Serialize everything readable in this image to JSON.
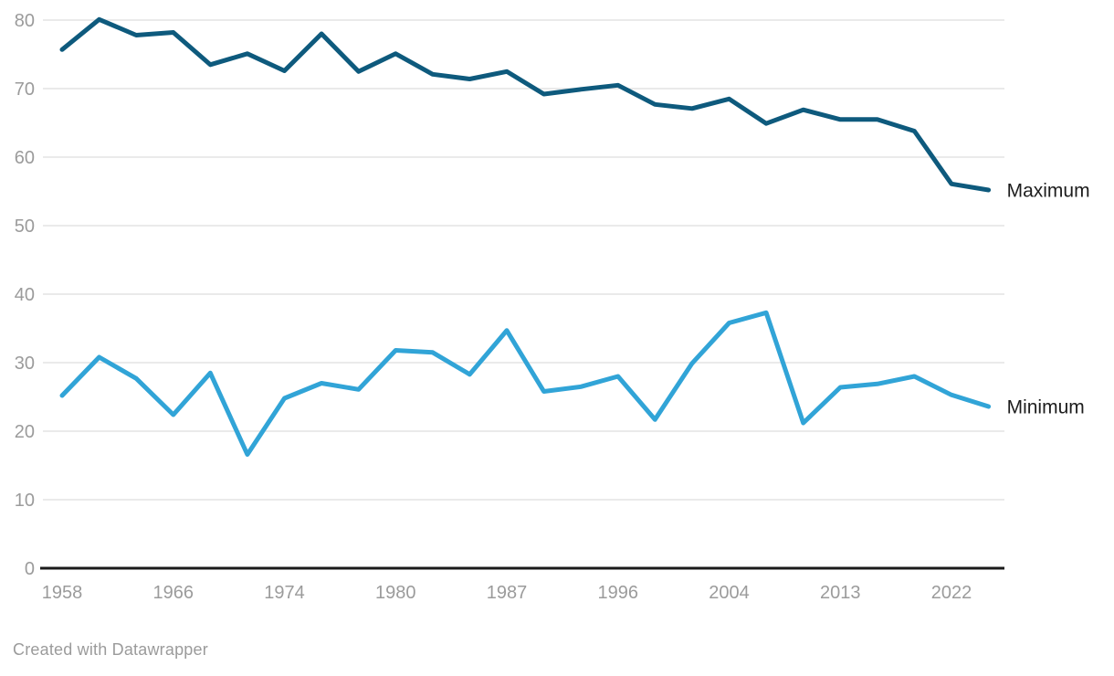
{
  "chart_data": {
    "type": "line",
    "x": [
      1958,
      1961,
      1963,
      1966,
      1969,
      1972,
      1974,
      1975,
      1977,
      1980,
      1983,
      1984,
      1987,
      1990,
      1993,
      1996,
      1998,
      2001,
      2004,
      2007,
      2010,
      2013,
      2016,
      2019,
      2022,
      2025
    ],
    "series": [
      {
        "name": "Maximum",
        "color": "#0e5a7d",
        "values": [
          75.7,
          80.1,
          77.8,
          78.2,
          73.5,
          75.1,
          72.6,
          78.0,
          72.5,
          75.1,
          72.1,
          71.4,
          72.5,
          69.2,
          69.9,
          70.5,
          67.7,
          67.1,
          68.5,
          64.9,
          66.9,
          65.5,
          65.5,
          63.8,
          56.1,
          55.2
        ]
      },
      {
        "name": "Minimum",
        "color": "#31a4d7",
        "values": [
          25.2,
          30.8,
          27.7,
          22.4,
          28.5,
          16.6,
          24.8,
          27.0,
          26.1,
          31.8,
          31.5,
          28.3,
          34.7,
          25.8,
          26.5,
          28.0,
          21.7,
          29.9,
          35.8,
          37.3,
          21.2,
          26.4,
          26.9,
          28.0,
          25.3,
          23.6
        ]
      }
    ],
    "ylim": [
      0,
      80
    ],
    "yticks": [
      0,
      10,
      20,
      30,
      40,
      50,
      60,
      70,
      80
    ],
    "xtick_labels": [
      "1958",
      "1966",
      "1974",
      "1980",
      "1987",
      "1996",
      "2004",
      "2013",
      "2022"
    ],
    "xtick_indices": [
      0,
      3,
      6,
      9,
      12,
      15,
      18,
      21,
      24
    ],
    "grid": "horizontal",
    "legend_position": "right-of-line-end"
  },
  "attribution": "Created with Datawrapper",
  "colors": {
    "background": "#ffffff",
    "gridline": "#e4e4e4",
    "axis_line": "#1a1a1a",
    "tick_label": "#9b9b9b",
    "series_label": "#1d1d1d",
    "attribution": "#9b9b9b"
  }
}
